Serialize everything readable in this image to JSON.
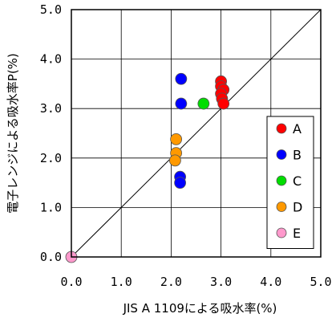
{
  "chart_data": {
    "type": "scatter",
    "title": "",
    "xlabel": "JIS A 1109による吸水率(%)",
    "ylabel": "電子レンジによる吸水率P(%)",
    "xlim": [
      0,
      5
    ],
    "ylim": [
      0,
      5
    ],
    "x_ticks": [
      "0.0",
      "1.0",
      "2.0",
      "3.0",
      "4.0",
      "5.0"
    ],
    "y_ticks": [
      "0.0",
      "1.0",
      "2.0",
      "3.0",
      "4.0",
      "5.0"
    ],
    "grid": true,
    "reference_line": {
      "from": [
        0,
        0
      ],
      "to": [
        5,
        5
      ]
    },
    "legend_position": "right",
    "series": [
      {
        "name": "A",
        "color": "#ff0000",
        "points": [
          [
            3.0,
            3.55
          ],
          [
            3.0,
            3.45
          ],
          [
            3.05,
            3.38
          ],
          [
            3.0,
            3.3
          ],
          [
            3.02,
            3.2
          ],
          [
            3.05,
            3.1
          ]
        ]
      },
      {
        "name": "B",
        "color": "#0000ff",
        "points": [
          [
            2.2,
            3.6
          ],
          [
            2.2,
            3.1
          ],
          [
            2.18,
            1.62
          ],
          [
            2.18,
            1.5
          ]
        ]
      },
      {
        "name": "C",
        "color": "#00dd00",
        "points": [
          [
            2.65,
            3.1
          ]
        ]
      },
      {
        "name": "D",
        "color": "#ff9900",
        "points": [
          [
            2.1,
            2.38
          ],
          [
            2.1,
            2.1
          ],
          [
            2.08,
            1.95
          ]
        ]
      },
      {
        "name": "E",
        "color": "#ff99cc",
        "points": [
          [
            0.0,
            0.0
          ]
        ]
      }
    ]
  }
}
